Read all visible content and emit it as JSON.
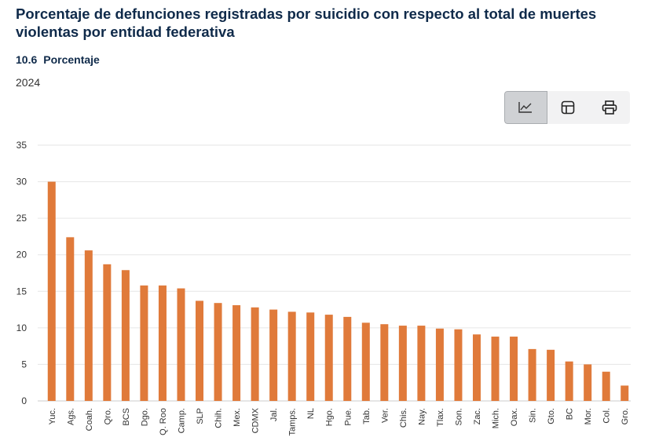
{
  "header": {
    "title": "Porcentaje de defunciones registradas por suicidio con respecto al total de muertes violentas por entidad federativa",
    "indicator_code": "10.6",
    "indicator_unit": "Porcentaje",
    "year": "2024"
  },
  "toolbar": {
    "buttons": [
      {
        "icon": "line-chart-icon",
        "active": true
      },
      {
        "icon": "table-icon",
        "active": false
      },
      {
        "icon": "printer-icon",
        "active": false
      }
    ]
  },
  "colors": {
    "bar": "#e07a3a",
    "title": "#0f2a4a",
    "grid": "#e6e6e6"
  },
  "chart_data": {
    "type": "bar",
    "categories": [
      "Yuc.",
      "Ags.",
      "Coah.",
      "Qro.",
      "BCS",
      "Dgo.",
      "Q. Roo",
      "Camp.",
      "SLP",
      "Chih.",
      "Mex.",
      "CDMX",
      "Jal.",
      "Tamps.",
      "NL",
      "Hgo.",
      "Pue.",
      "Tab.",
      "Ver.",
      "Chis.",
      "Nay.",
      "Tlax.",
      "Son.",
      "Zac.",
      "Mich.",
      "Oax.",
      "Sin.",
      "Gto.",
      "BC",
      "Mor.",
      "Col.",
      "Gro."
    ],
    "values": [
      30.0,
      22.4,
      20.6,
      18.7,
      17.9,
      15.8,
      15.8,
      15.4,
      13.7,
      13.4,
      13.1,
      12.8,
      12.5,
      12.2,
      12.1,
      11.8,
      11.5,
      10.7,
      10.5,
      10.3,
      10.3,
      9.9,
      9.8,
      9.1,
      8.8,
      8.8,
      7.1,
      7.0,
      5.4,
      5.0,
      4.0,
      2.1
    ],
    "ylim": [
      0,
      35
    ],
    "yticks": [
      0,
      5,
      10,
      15,
      20,
      25,
      30,
      35
    ],
    "grid": true,
    "xlabel": "",
    "ylabel": ""
  }
}
